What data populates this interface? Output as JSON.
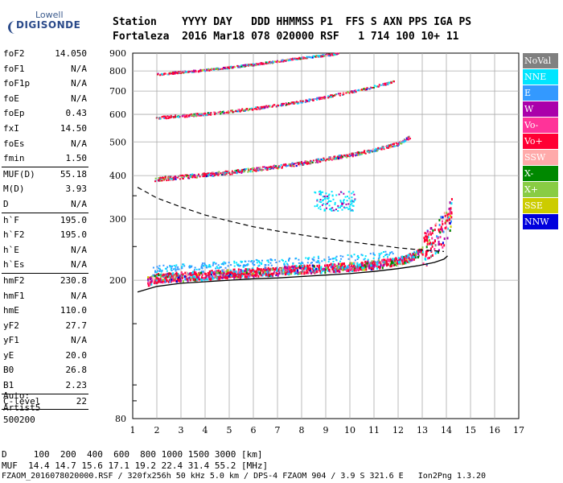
{
  "logo": {
    "line1": "Lowell",
    "line2": "DIGISONDE"
  },
  "header": {
    "row1": "Station    YYYY DAY   DDD HHMMSS P1  FFS S AXN PPS IGA PS",
    "row2": "Fortaleza  2016 Mar18 078 020000 RSF   1 714 100 10+ 11"
  },
  "params": [
    {
      "k": "foF2",
      "v": "14.050"
    },
    {
      "k": "foF1",
      "v": "N/A"
    },
    {
      "k": "foF1p",
      "v": "N/A"
    },
    {
      "k": "foE",
      "v": "N/A"
    },
    {
      "k": "foEp",
      "v": "0.43"
    },
    {
      "k": "fxI",
      "v": "14.50"
    },
    {
      "k": "foEs",
      "v": "N/A"
    },
    {
      "k": "fmin",
      "v": "1.50",
      "sep": true
    },
    {
      "k": "MUF(D)",
      "v": "55.18"
    },
    {
      "k": "M(D)",
      "v": "3.93"
    },
    {
      "k": "D",
      "v": "N/A",
      "sep": true
    },
    {
      "k": "h`F",
      "v": "195.0"
    },
    {
      "k": "h`F2",
      "v": "195.0"
    },
    {
      "k": "h`E",
      "v": "N/A"
    },
    {
      "k": "h`Es",
      "v": "N/A",
      "sep": true
    },
    {
      "k": "hmF2",
      "v": "230.8"
    },
    {
      "k": "hmF1",
      "v": "N/A"
    },
    {
      "k": "hmE",
      "v": "110.0"
    },
    {
      "k": "yF2",
      "v": "27.7"
    },
    {
      "k": "yF1",
      "v": "N/A"
    },
    {
      "k": "yE",
      "v": "20.0"
    },
    {
      "k": "B0",
      "v": "26.8"
    },
    {
      "k": "B1",
      "v": "2.23",
      "sep": true
    },
    {
      "k": "C-level",
      "v": "22",
      "sep": true
    }
  ],
  "auto": {
    "line1": "Auto:",
    "line2": "Artist5",
    "line3": "500200"
  },
  "legend": [
    {
      "label": "NoVal",
      "color": "#808080"
    },
    {
      "label": "NNE",
      "color": "#00e5ff"
    },
    {
      "label": "E",
      "color": "#3399ff"
    },
    {
      "label": "W",
      "color": "#aa00aa"
    },
    {
      "label": "Vo-",
      "color": "#ff3399"
    },
    {
      "label": "Vo+",
      "color": "#ff0033"
    },
    {
      "label": "SSW",
      "color": "#ffaaaa"
    },
    {
      "label": "X-",
      "color": "#008800"
    },
    {
      "label": "X+",
      "color": "#88cc44"
    },
    {
      "label": "SSE",
      "color": "#cccc00"
    },
    {
      "label": "NNW",
      "color": "#0000dd"
    }
  ],
  "footer": {
    "line1": "D     100  200  400  600  800 1000 1500 3000 [km]",
    "line2": "MUF  14.4 14.7 15.6 17.1 19.2 22.4 31.4 55.2 [MHz]",
    "line3": "FZAOM_2016078020000.RSF / 320fx256h 50 kHz 5.0 km / DPS-4 FZAOM 904 / 3.9 S 321.6 E   Ion2Png 1.3.20"
  },
  "chart_data": {
    "type": "scatter",
    "xlim": [
      1,
      17
    ],
    "ylim_log": [
      80,
      900
    ],
    "xticks": [
      "1",
      "2",
      "3",
      "4",
      "5",
      "6",
      "7",
      "8",
      "9",
      "10",
      "11",
      "12",
      "13",
      "14",
      "15",
      "16",
      "17"
    ],
    "yticks": [
      {
        "label": "80",
        "v": 80
      },
      {
        "label": "200",
        "v": 200
      },
      {
        "label": "300",
        "v": 300
      },
      {
        "label": "400",
        "v": 400
      },
      {
        "label": "500",
        "v": 500
      },
      {
        "label": "600",
        "v": 600
      },
      {
        "label": "700",
        "v": 700
      },
      {
        "label": "800",
        "v": 800
      },
      {
        "label": "900",
        "v": 900
      }
    ],
    "yscale": "log",
    "grid": true,
    "traces": [
      {
        "name": "1st-hop",
        "color": "#ff0033",
        "x": [
          1.6,
          2,
          3,
          4,
          5,
          6,
          7,
          8,
          9,
          10,
          11,
          12,
          12.5,
          13,
          13.5,
          14,
          14.2
        ],
        "y": [
          200,
          204,
          206,
          208,
          210,
          212,
          214,
          216,
          218,
          220,
          223,
          228,
          234,
          245,
          265,
          290,
          320
        ]
      },
      {
        "name": "2nd-hop",
        "color": "#ff0033",
        "x": [
          1.9,
          3,
          4,
          5,
          6,
          7,
          8,
          9,
          10,
          11,
          12,
          12.5
        ],
        "y": [
          392,
          398,
          404,
          410,
          418,
          426,
          436,
          448,
          460,
          476,
          496,
          520
        ]
      },
      {
        "name": "3rd-hop",
        "color": "#ff0033",
        "x": [
          1.9,
          3,
          4,
          5,
          6,
          7,
          8,
          9,
          10,
          11,
          11.8
        ],
        "y": [
          588,
          596,
          604,
          614,
          626,
          640,
          656,
          676,
          698,
          724,
          748
        ]
      },
      {
        "name": "4th-hop",
        "color": "#ff0033",
        "x": [
          2,
          3,
          4,
          5,
          6,
          7,
          8,
          9,
          9.5
        ],
        "y": [
          786,
          796,
          808,
          822,
          838,
          856,
          876,
          892,
          900
        ]
      }
    ],
    "profile_solid": {
      "x": [
        1.2,
        2,
        3,
        4,
        5,
        6,
        7,
        8,
        9,
        10,
        11,
        12,
        12.8,
        13.5,
        13.9,
        14.05
      ],
      "y": [
        185,
        192,
        196,
        198,
        200,
        202,
        203,
        205,
        207,
        209,
        212,
        216,
        220,
        225,
        230,
        235
      ]
    },
    "profile_dashed": {
      "x": [
        1.2,
        2,
        3,
        4,
        5,
        6,
        7,
        8,
        9,
        10,
        11,
        12,
        12.8,
        13.5,
        13.9
      ],
      "y": [
        370,
        345,
        325,
        308,
        296,
        285,
        277,
        270,
        264,
        258,
        253,
        248,
        245,
        243,
        242
      ]
    }
  }
}
